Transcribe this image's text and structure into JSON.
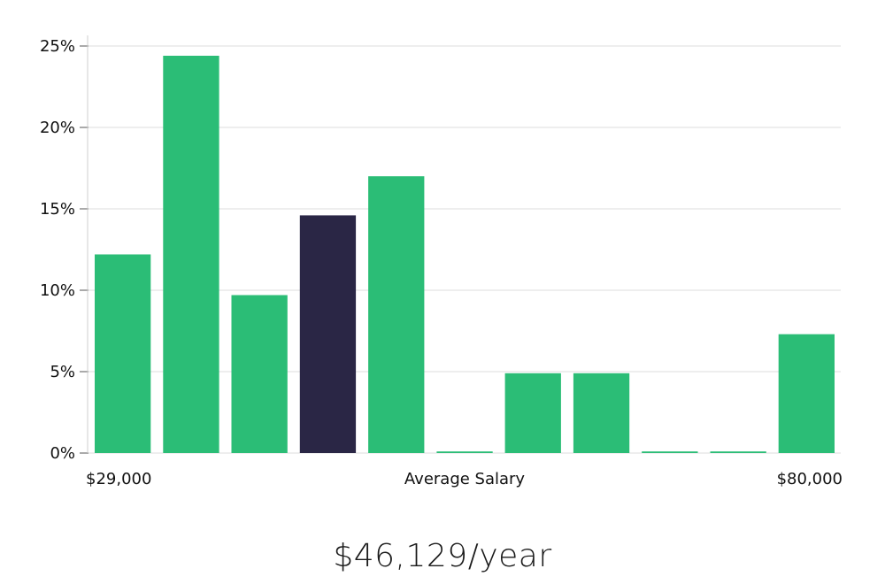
{
  "chart_data": {
    "type": "bar",
    "values": [
      12.2,
      24.4,
      9.7,
      14.6,
      17.0,
      0.1,
      4.9,
      4.9,
      0.1,
      0.1,
      7.3
    ],
    "highlight_index": 3,
    "ylim": [
      0,
      25
    ],
    "yticks": [
      "0%",
      "5%",
      "10%",
      "15%",
      "20%",
      "25%"
    ],
    "ytick_values": [
      0,
      5,
      10,
      15,
      20,
      25
    ],
    "x_min_label": "$29,000",
    "x_max_label": "$80,000",
    "xlabel": "Average Salary",
    "grid": true
  },
  "colors": {
    "bar": "#2bbd76",
    "highlight": "#2a2645"
  },
  "headline": "$46,129/year"
}
